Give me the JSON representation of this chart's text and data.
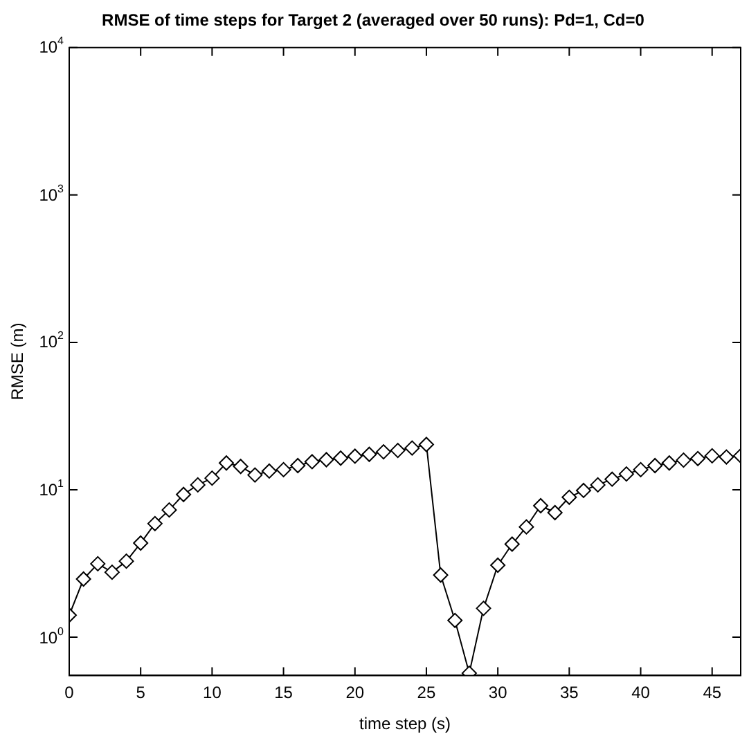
{
  "chart_data": {
    "type": "line",
    "title": "RMSE of time steps for Target 2 (averaged over 50 runs): Pd=1, Cd=0",
    "xlabel": "time step (s)",
    "ylabel": "RMSE (m)",
    "x": [
      0,
      1,
      2,
      3,
      4,
      5,
      6,
      7,
      8,
      9,
      10,
      11,
      12,
      13,
      14,
      15,
      16,
      17,
      18,
      19,
      20,
      21,
      22,
      23,
      24,
      25,
      26,
      27,
      28,
      29,
      30,
      31,
      32,
      33,
      34,
      35,
      36,
      37,
      38,
      39,
      40,
      41,
      42,
      43,
      44,
      45,
      46,
      47
    ],
    "series": [
      {
        "color": "#000000",
        "values": [
          1.41,
          2.48,
          3.15,
          2.76,
          3.28,
          4.35,
          5.9,
          7.3,
          9.3,
          10.8,
          12.0,
          15.2,
          14.4,
          12.6,
          13.4,
          13.7,
          14.6,
          15.5,
          16.0,
          16.4,
          16.9,
          17.4,
          18.1,
          18.5,
          19.2,
          20.3,
          2.64,
          1.3,
          0.57,
          1.57,
          3.08,
          4.28,
          5.6,
          7.8,
          7.0,
          8.9,
          9.9,
          10.8,
          11.8,
          12.8,
          13.7,
          14.6,
          15.2,
          15.9,
          16.3,
          17.0,
          16.7,
          17.0
        ]
      }
    ],
    "xlim": [
      0,
      47
    ],
    "xticks": [
      0,
      5,
      10,
      15,
      20,
      25,
      30,
      35,
      40,
      45
    ],
    "ylim": [
      0.55,
      10000
    ],
    "yticks": [
      {
        "value": 1,
        "label": "10$^{0}$"
      },
      {
        "value": 10,
        "label": "10$^{1}$"
      },
      {
        "value": 100,
        "label": "10$^{2}$"
      },
      {
        "value": 1000,
        "label": "10$^{3}$"
      },
      {
        "value": 10000,
        "label": "10$^{4}$"
      }
    ],
    "log": "y",
    "grid": false,
    "legend": false,
    "marker": "diamond",
    "line_style": "solid"
  }
}
